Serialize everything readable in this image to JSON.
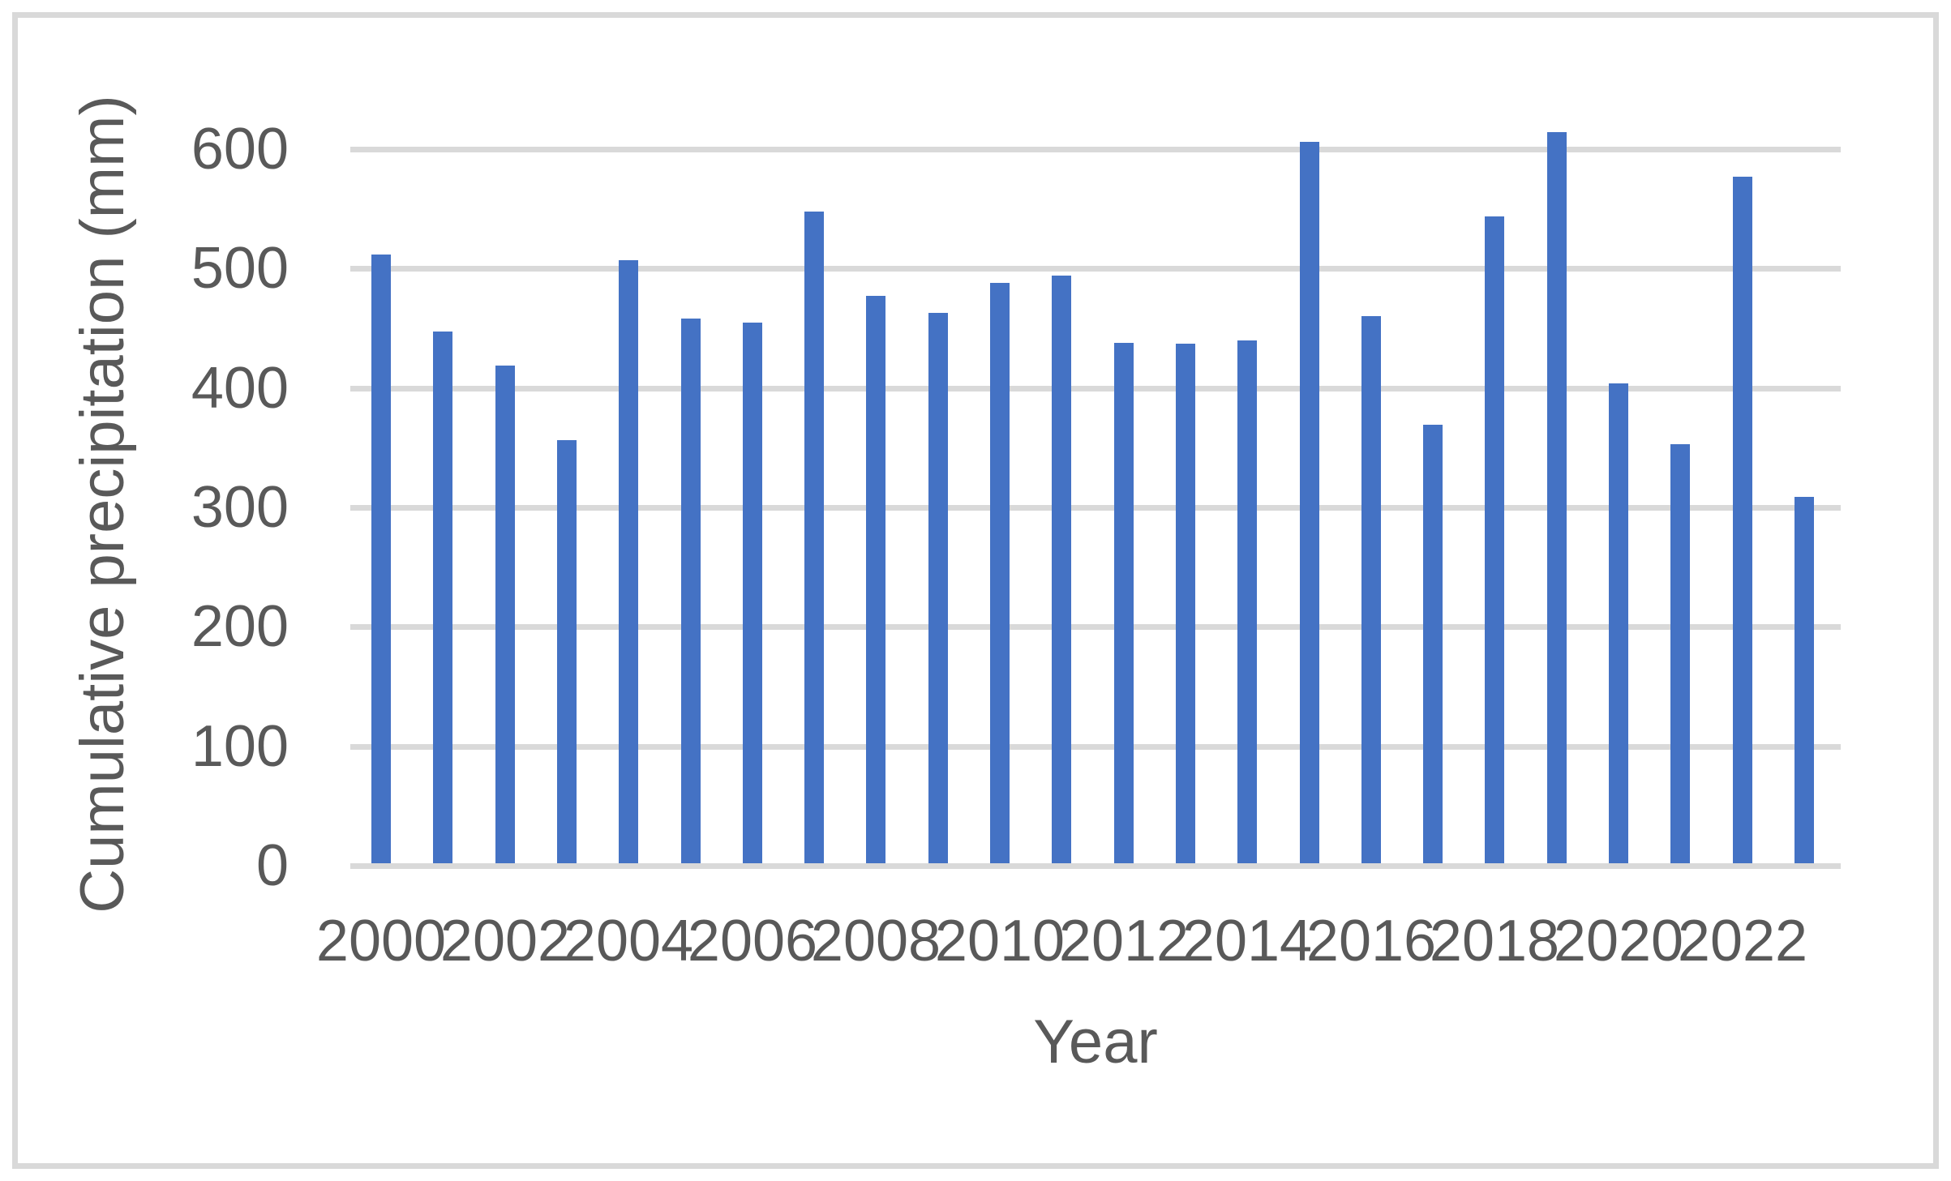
{
  "chart_data": {
    "type": "bar",
    "title": "",
    "xlabel": "Year",
    "ylabel": "Cumulative precipitation (mm)",
    "categories": [
      "2000",
      "2001",
      "2002",
      "2003",
      "2004",
      "2005",
      "2006",
      "2007",
      "2008",
      "2009",
      "2010",
      "2011",
      "2012",
      "2013",
      "2014",
      "2015",
      "2016",
      "2017",
      "2018",
      "2019",
      "2020",
      "2021",
      "2022",
      "2023"
    ],
    "values": [
      512,
      447,
      419,
      356,
      507,
      458,
      455,
      548,
      477,
      463,
      488,
      494,
      438,
      437,
      440,
      606,
      460,
      369,
      544,
      614,
      404,
      353,
      577,
      309
    ],
    "x_tick_labels": [
      "2000",
      "2002",
      "2004",
      "2006",
      "2008",
      "2010",
      "2012",
      "2014",
      "2016",
      "2018",
      "2020",
      "2022"
    ],
    "yticks": [
      0,
      100,
      200,
      300,
      400,
      500,
      600
    ],
    "ylim": [
      0,
      650
    ],
    "grid": "horizontal-major",
    "legend": "none",
    "colors": {
      "bar": "#4472C4",
      "gridline": "#D9D9D9",
      "axis_line": "#D9D9D9",
      "text": "#595959",
      "border": "#D9D9D9",
      "background": "#FFFFFF"
    }
  }
}
